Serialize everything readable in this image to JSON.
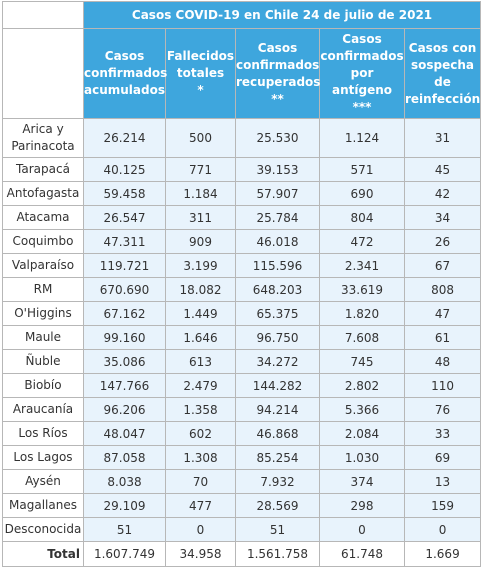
{
  "title": "Casos COVID-19 en Chile 24 de julio de 2021",
  "headers": [
    "Casos\nconfirmados\nacumulados",
    "Fallecidos\ntotales\n*",
    "Casos\nconfirmados\nrecuperados\n**",
    "Casos\nconfirmados\npor\nantígeno\n***",
    "Casos con\nsospecha\nde\nreinfección"
  ],
  "rows": [
    {
      "region": "Arica y\nParinacota",
      "values": [
        "26.214",
        "500",
        "25.530",
        "1.124",
        "31"
      ]
    },
    {
      "region": "Tarapacá",
      "values": [
        "40.125",
        "771",
        "39.153",
        "571",
        "45"
      ]
    },
    {
      "region": "Antofagasta",
      "values": [
        "59.458",
        "1.184",
        "57.907",
        "690",
        "42"
      ]
    },
    {
      "region": "Atacama",
      "values": [
        "26.547",
        "311",
        "25.784",
        "804",
        "34"
      ]
    },
    {
      "region": "Coquimbo",
      "values": [
        "47.311",
        "909",
        "46.018",
        "472",
        "26"
      ]
    },
    {
      "region": "Valparaíso",
      "values": [
        "119.721",
        "3.199",
        "115.596",
        "2.341",
        "67"
      ]
    },
    {
      "region": "RM",
      "values": [
        "670.690",
        "18.082",
        "648.203",
        "33.619",
        "808"
      ]
    },
    {
      "region": "O'Higgins",
      "values": [
        "67.162",
        "1.449",
        "65.375",
        "1.820",
        "47"
      ]
    },
    {
      "region": "Maule",
      "values": [
        "99.160",
        "1.646",
        "96.750",
        "7.608",
        "61"
      ]
    },
    {
      "region": "Ñuble",
      "values": [
        "35.086",
        "613",
        "34.272",
        "745",
        "48"
      ]
    },
    {
      "region": "Biobío",
      "values": [
        "147.766",
        "2.479",
        "144.282",
        "2.802",
        "110"
      ]
    },
    {
      "region": "Araucanía",
      "values": [
        "96.206",
        "1.358",
        "94.214",
        "5.366",
        "76"
      ]
    },
    {
      "region": "Los Ríos",
      "values": [
        "48.047",
        "602",
        "46.868",
        "2.084",
        "33"
      ]
    },
    {
      "region": "Los Lagos",
      "values": [
        "87.058",
        "1.308",
        "85.254",
        "1.030",
        "69"
      ]
    },
    {
      "region": "Aysén",
      "values": [
        "8.038",
        "70",
        "7.932",
        "374",
        "13"
      ]
    },
    {
      "region": "Magallanes",
      "values": [
        "29.109",
        "477",
        "28.569",
        "298",
        "159"
      ]
    },
    {
      "region": "Desconocida",
      "values": [
        "51",
        "0",
        "51",
        "0",
        "0"
      ]
    }
  ],
  "total": {
    "label": "Total",
    "values": [
      "1.607.749",
      "34.958",
      "1.561.758",
      "61.748",
      "1.669"
    ]
  },
  "colors": {
    "header_bg": "#3ea6dd",
    "cell_bg": "#e8f3fc",
    "border": "#b7b7b7"
  }
}
